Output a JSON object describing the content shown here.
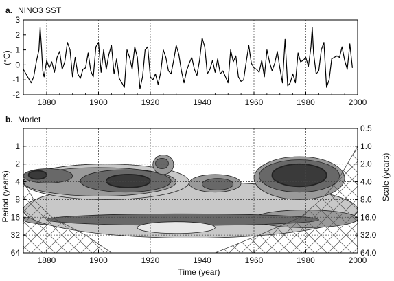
{
  "chart_data": [
    {
      "type": "line",
      "title": "NINO3 SST",
      "panel_letter": "a.",
      "ylabel": "(°C)",
      "xlabel": "",
      "xlim": [
        1871,
        2000
      ],
      "ylim": [
        -2,
        3
      ],
      "x_ticks": [
        "1880",
        "1900",
        "1920",
        "1940",
        "1960",
        "1980",
        "2000"
      ],
      "y_ticks": [
        "-2",
        "-1",
        "0",
        "1",
        "2",
        "3"
      ],
      "grid": "dotted vertical lines every 20 years, dotted horizontal line at 0",
      "series": [
        {
          "x": [
            1871,
            1872,
            1873,
            1874,
            1875,
            1876,
            1877,
            1877.5,
            1878,
            1878.5,
            1879,
            1880,
            1881,
            1882,
            1883,
            1884,
            1885,
            1886,
            1887,
            1888,
            1889,
            1890,
            1891,
            1892,
            1893,
            1894,
            1895,
            1896,
            1897,
            1898,
            1899,
            1900,
            1901,
            1902,
            1903,
            1904,
            1905,
            1906,
            1907,
            1908,
            1909,
            1910,
            1911,
            1912,
            1913,
            1914,
            1915,
            1916,
            1917,
            1918,
            1919,
            1920,
            1921,
            1922,
            1923,
            1924,
            1925,
            1926,
            1927,
            1928,
            1929,
            1930,
            1931,
            1932,
            1933,
            1934,
            1935,
            1936,
            1937,
            1938,
            1939,
            1940,
            1941,
            1942,
            1943,
            1944,
            1945,
            1946,
            1947,
            1948,
            1949,
            1950,
            1951,
            1952,
            1953,
            1954,
            1955,
            1956,
            1957,
            1958,
            1959,
            1960,
            1961,
            1962,
            1963,
            1964,
            1965,
            1966,
            1967,
            1968,
            1969,
            1970,
            1971,
            1972,
            1973,
            1974,
            1975,
            1976,
            1977,
            1978,
            1979,
            1980,
            1981,
            1982,
            1982.5,
            1983,
            1984,
            1985,
            1986,
            1987,
            1988,
            1989,
            1990,
            1991,
            1992,
            1993,
            1994,
            1995,
            1996,
            1997,
            1998
          ],
          "y": [
            -0.3,
            -0.6,
            -0.9,
            -1.2,
            -0.8,
            0.2,
            1.0,
            2.5,
            1.2,
            -0.4,
            -0.8,
            0.3,
            -0.2,
            0.2,
            -0.5,
            0.5,
            0.9,
            -0.3,
            0.2,
            1.5,
            1.0,
            -0.8,
            0.5,
            -0.6,
            -0.9,
            -0.3,
            -0.2,
            0.8,
            -0.4,
            -0.8,
            1.2,
            1.5,
            -0.5,
            1.0,
            -0.3,
            0.7,
            1.3,
            -0.6,
            0.4,
            -0.9,
            -1.2,
            -1.5,
            1.0,
            0.5,
            -0.3,
            1.2,
            0.5,
            -1.6,
            -0.8,
            1.0,
            1.2,
            -0.8,
            -1.0,
            -0.6,
            -1.3,
            -0.5,
            1.0,
            0.5,
            -0.4,
            -0.6,
            0.3,
            1.3,
            0.7,
            -0.4,
            -1.2,
            -0.4,
            0.1,
            0.5,
            -0.3,
            -0.7,
            0.3,
            1.8,
            1.2,
            -0.6,
            -0.3,
            0.3,
            -0.5,
            0.4,
            -0.6,
            -0.4,
            -0.8,
            -1.2,
            1.0,
            0.2,
            0.6,
            -0.8,
            -1.1,
            -1.0,
            0.2,
            1.3,
            0.1,
            -0.2,
            -0.3,
            -0.5,
            0.3,
            -0.8,
            1.0,
            0.2,
            -0.4,
            0.1,
            0.9,
            -0.2,
            -1.2,
            1.7,
            -1.4,
            -1.2,
            -0.6,
            -1.2,
            0.8,
            0.2,
            0.3,
            0.5,
            -0.1,
            1.2,
            2.5,
            0.8,
            -0.6,
            -0.4,
            1.0,
            1.5,
            -1.5,
            -1.0,
            0.4,
            0.5,
            0.6,
            0.5,
            1.2,
            0.3,
            -0.3,
            1.4,
            -0.2
          ]
        }
      ]
    },
    {
      "type": "heatmap",
      "title": "Morlet",
      "panel_letter": "b.",
      "xlabel": "Time (year)",
      "ylabel": "Period (years)",
      "ylabel_right": "Scale (years)",
      "xlim": [
        1871,
        2000
      ],
      "y_scale": "log2",
      "ylim": [
        0.5,
        64
      ],
      "x_ticks": [
        "1880",
        "1900",
        "1920",
        "1940",
        "1960",
        "1980",
        "2000"
      ],
      "y_ticks_left": [
        "1",
        "2",
        "4",
        "8",
        "16",
        "32",
        "64"
      ],
      "y_ticks_right": [
        "0.5",
        "1.0",
        "2.0",
        "4.0",
        "8.0",
        "16.0",
        "32.0",
        "64.0"
      ],
      "grid": "dotted lines at the tick positions",
      "levels": [
        "lightest",
        "light",
        "medium",
        "dark",
        "darkest"
      ],
      "level_colors": [
        "#e8e8e8",
        "#c8c8c8",
        "#9a9a9a",
        "#686868",
        "#3a3a3a"
      ],
      "blobs": [
        {
          "level": 2,
          "x": [
            1871,
            2000
          ],
          "period": [
            12,
            26
          ]
        },
        {
          "level": 1,
          "x": [
            1871,
            2000
          ],
          "period": [
            4,
            36
          ]
        },
        {
          "level": 1,
          "x": [
            1871,
            1935
          ],
          "period": [
            2,
            8
          ]
        },
        {
          "level": 2,
          "x": [
            1871,
            1930
          ],
          "period": [
            2.3,
            7
          ]
        },
        {
          "level": 3,
          "x": [
            1871,
            1890
          ],
          "period": [
            2.4,
            4.2
          ]
        },
        {
          "level": 4,
          "x": [
            1873,
            1880
          ],
          "period": [
            2.6,
            3.6
          ]
        },
        {
          "level": 3,
          "x": [
            1893,
            1928
          ],
          "period": [
            2.5,
            6
          ]
        },
        {
          "level": 4,
          "x": [
            1903,
            1920
          ],
          "period": [
            3,
            5
          ]
        },
        {
          "level": 2,
          "x": [
            1921,
            1929
          ],
          "period": [
            1.4,
            3
          ]
        },
        {
          "level": 3,
          "x": [
            1922,
            1927
          ],
          "period": [
            1.6,
            2.4
          ]
        },
        {
          "level": 2,
          "x": [
            1935,
            1955
          ],
          "period": [
            3,
            6
          ]
        },
        {
          "level": 3,
          "x": [
            1940,
            1952
          ],
          "period": [
            3.5,
            5.5
          ]
        },
        {
          "level": 2,
          "x": [
            1960,
            1995
          ],
          "period": [
            1.5,
            8
          ]
        },
        {
          "level": 3,
          "x": [
            1962,
            1993
          ],
          "period": [
            1.7,
            6
          ]
        },
        {
          "level": 4,
          "x": [
            1967,
            1988
          ],
          "period": [
            2,
            4.8
          ]
        },
        {
          "level": 2,
          "x": [
            1960,
            2000
          ],
          "period": [
            12,
            24
          ]
        },
        {
          "level": 3,
          "x": [
            1880,
            1985
          ],
          "period": [
            14,
            22
          ]
        },
        {
          "level": 0,
          "x": [
            1915,
            1945
          ],
          "period": [
            19,
            30
          ]
        }
      ],
      "cone_of_influence": "cross-hatched region at long periods and near both time edges"
    }
  ]
}
